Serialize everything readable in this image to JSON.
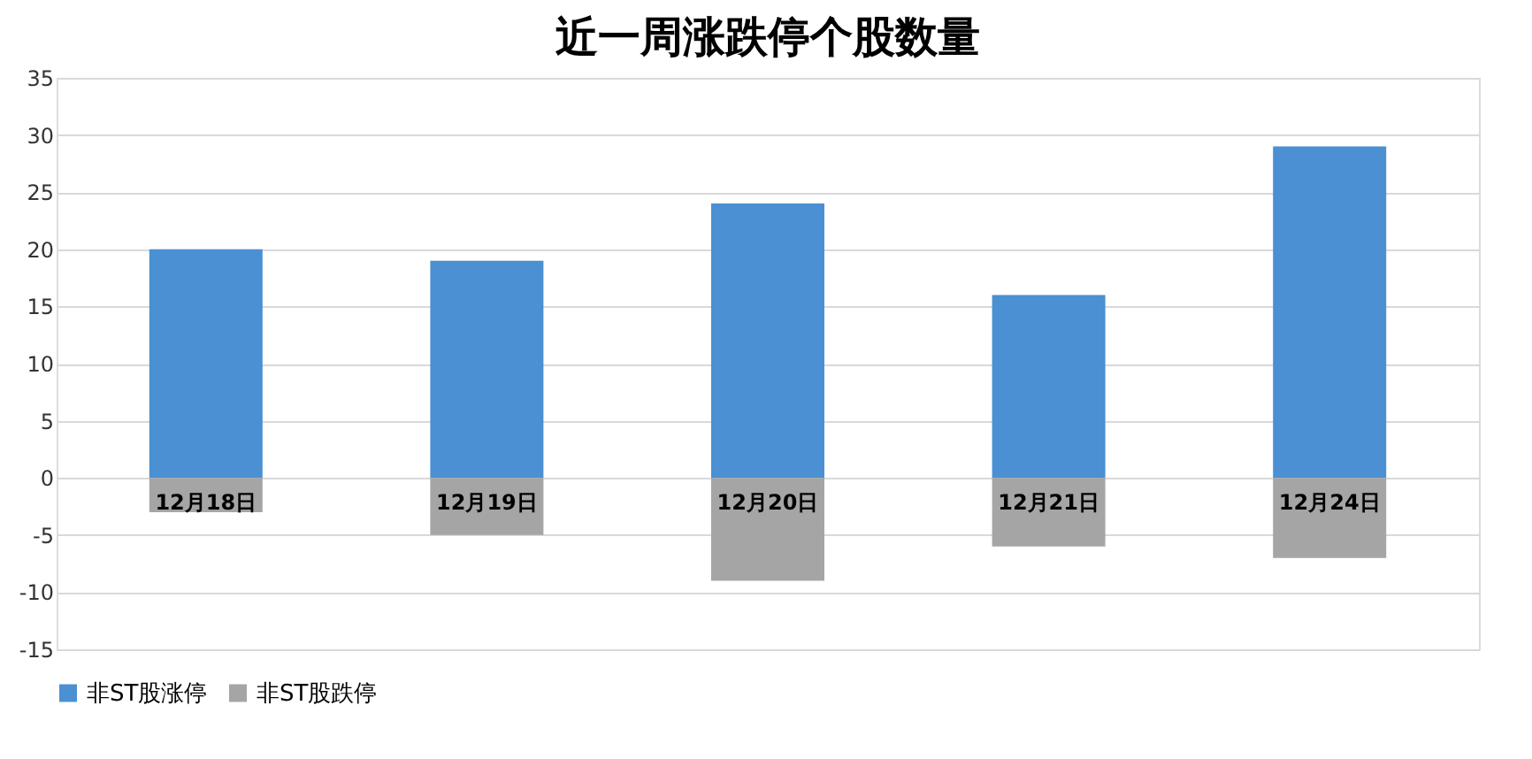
{
  "chart_data": {
    "type": "bar",
    "title": "近一周涨跌停个股数量",
    "categories": [
      "12月18日",
      "12月19日",
      "12月20日",
      "12月21日",
      "12月24日"
    ],
    "series": [
      {
        "name": "非ST股涨停",
        "color": "#4a90d2",
        "values": [
          20,
          19,
          24,
          16,
          29
        ]
      },
      {
        "name": "非ST股跌停",
        "color": "#a5a5a5",
        "values": [
          -3,
          -5,
          -9,
          -6,
          -7
        ]
      }
    ],
    "stacked": true,
    "ylim": [
      -15,
      35
    ],
    "yticks": [
      -15,
      -10,
      -5,
      0,
      5,
      10,
      15,
      20,
      25,
      30,
      35
    ],
    "grid": "y",
    "legend": "bottom"
  }
}
